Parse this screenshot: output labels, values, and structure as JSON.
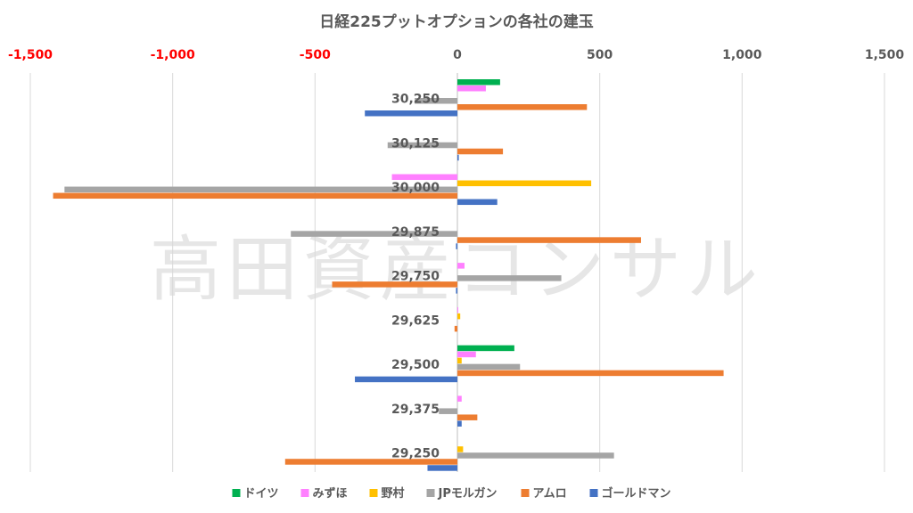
{
  "watermark": "高田資産コンサル",
  "chart_data": {
    "type": "bar",
    "orientation": "horizontal",
    "title": "日経225プットオプションの各社の建玉",
    "xlim": [
      -1500,
      1500
    ],
    "x_ticks": [
      -1500,
      -1000,
      -500,
      0,
      500,
      1000,
      1500
    ],
    "x_tick_labels": [
      "-1,500",
      "-1,000",
      "-500",
      "0",
      "500",
      "1,000",
      "1,500"
    ],
    "negative_tick_color": "#ff0000",
    "positive_tick_color": "#595959",
    "grid": "vertical",
    "legend_position": "bottom",
    "categories": [
      "30,250",
      "30,125",
      "30,000",
      "29,875",
      "29,750",
      "29,625",
      "29,500",
      "29,375",
      "29,250"
    ],
    "series": [
      {
        "name": "ドイツ",
        "color": "#00b050",
        "values": [
          150,
          0,
          0,
          0,
          0,
          0,
          200,
          0,
          0
        ]
      },
      {
        "name": "みずほ",
        "color": "#ff80ff",
        "values": [
          100,
          0,
          -230,
          0,
          25,
          3,
          65,
          15,
          0
        ]
      },
      {
        "name": "野村",
        "color": "#ffc000",
        "values": [
          0,
          0,
          470,
          0,
          0,
          10,
          15,
          0,
          20
        ]
      },
      {
        "name": "JPモルガン",
        "color": "#a5a5a5",
        "values": [
          -150,
          -245,
          -1380,
          -585,
          365,
          0,
          220,
          -65,
          550
        ]
      },
      {
        "name": "アムロ",
        "color": "#ed7d31",
        "values": [
          455,
          160,
          -1420,
          645,
          -440,
          -10,
          935,
          70,
          -605
        ]
      },
      {
        "name": "ゴールドマン",
        "color": "#4472c4",
        "values": [
          -325,
          5,
          140,
          -5,
          -5,
          0,
          -360,
          15,
          -105
        ]
      }
    ]
  }
}
